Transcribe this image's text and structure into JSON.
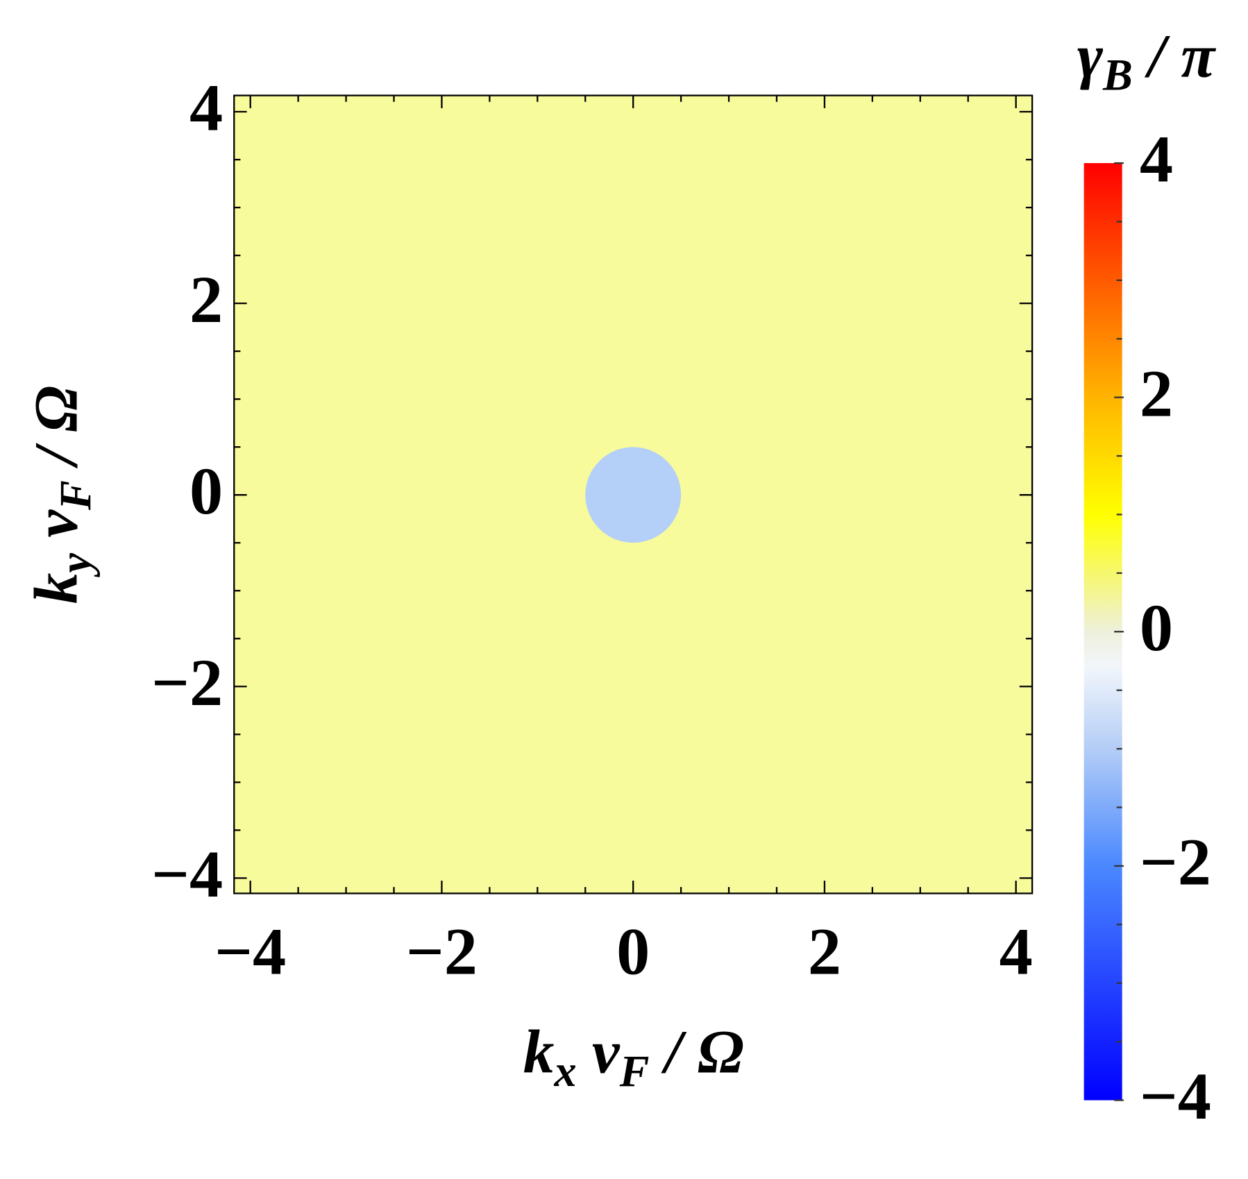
{
  "chart_data": {
    "type": "region_plot",
    "xlabel": [
      {
        "text": "k"
      },
      {
        "text": "x",
        "sub": true
      },
      {
        "text": " v"
      },
      {
        "text": "F",
        "sub": true
      },
      {
        "text": " / Ω"
      }
    ],
    "ylabel": [
      {
        "text": "k"
      },
      {
        "text": "y",
        "sub": true
      },
      {
        "text": " v"
      },
      {
        "text": "F",
        "sub": true
      },
      {
        "text": " / Ω"
      }
    ],
    "xlim": [
      -4.17,
      4.17
    ],
    "ylim": [
      -4.16,
      4.17
    ],
    "xticks": [
      {
        "value": -4,
        "label": "−4"
      },
      {
        "value": -2,
        "label": "−2"
      },
      0,
      2,
      4
    ],
    "yticks": [
      {
        "value": -4,
        "label": "−4"
      },
      {
        "value": -2,
        "label": "−2"
      },
      0,
      2,
      4
    ],
    "xminorticks": [
      -3.5,
      -3,
      -2.5,
      -1.5,
      -1,
      -0.5,
      0.5,
      1,
      1.5,
      2.5,
      3,
      3.5
    ],
    "yminorticks": [
      -3.5,
      -3,
      -2.5,
      -1.5,
      -1,
      -0.5,
      0.5,
      1,
      1.5,
      2.5,
      3,
      3.5
    ],
    "regions": [
      {
        "color": "#f8fb9c"
      },
      {
        "color": "#b4cff8",
        "center": [
          0,
          0
        ],
        "radius": 0.5
      }
    ],
    "colorbar": {
      "label": [
        {
          "text": "γ"
        },
        {
          "text": "B",
          "sub": true
        },
        {
          "text": " / π"
        }
      ],
      "lim": [
        -4,
        4
      ],
      "ticks": [
        {
          "value": -4,
          "label": "−4"
        },
        {
          "value": -2,
          "label": "−2"
        },
        0,
        2,
        4
      ],
      "minorticks": [
        -3.5,
        -3,
        -2.5,
        -1.5,
        -1,
        -0.5,
        0.5,
        1,
        1.5,
        2.5,
        3,
        3.5
      ],
      "colormap": [
        {
          "value": -4,
          "color": "#0000ff"
        },
        {
          "value": -2,
          "color": "#4a88ff"
        },
        {
          "value": -1,
          "color": "#b3cdf6"
        },
        {
          "value": -0.3,
          "color": "#f2f6fb"
        },
        {
          "value": 0,
          "color": "#eef0dc"
        },
        {
          "value": 1,
          "color": "#ffff00"
        },
        {
          "value": 2,
          "color": "#ffb400"
        },
        {
          "value": 3,
          "color": "#ff5a00"
        },
        {
          "value": 4,
          "color": "#ff0000"
        }
      ]
    }
  }
}
